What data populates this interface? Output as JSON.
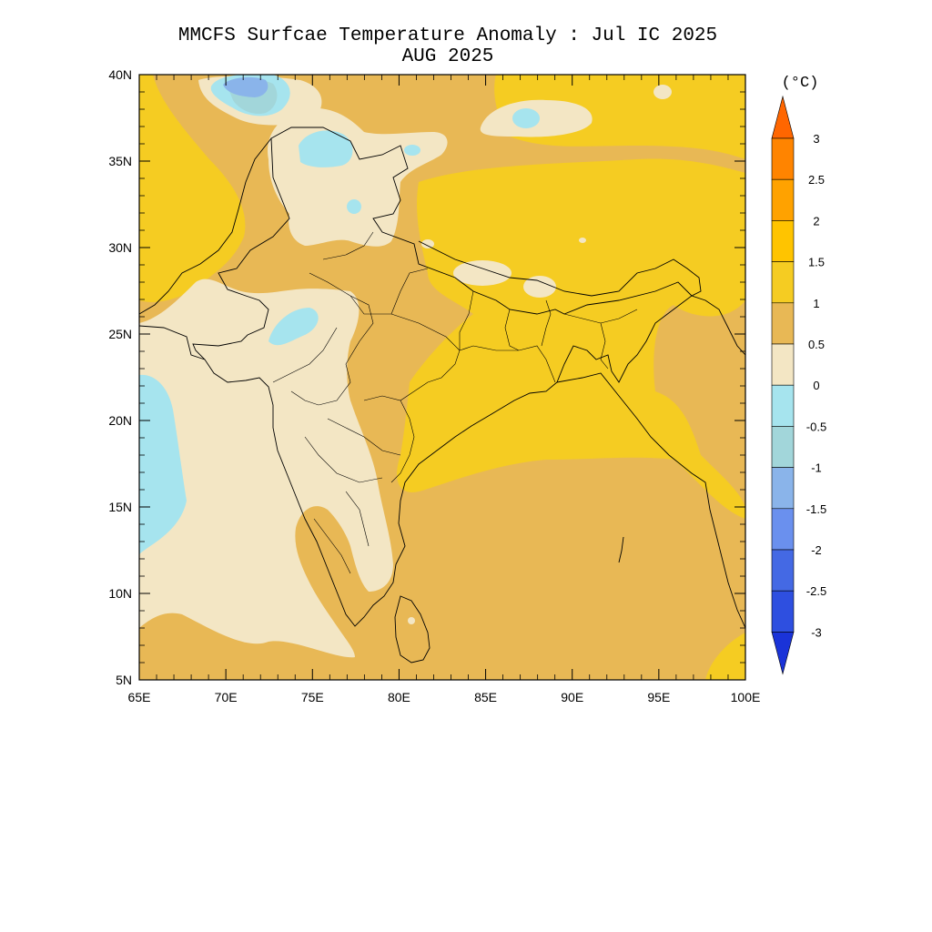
{
  "title": {
    "line1": "MMCFS Surfcae Temperature Anomaly : Jul IC 2025",
    "line2": "AUG 2025"
  },
  "map": {
    "lon_range": [
      65,
      100
    ],
    "lat_range": [
      5,
      40
    ],
    "x_ticks": [
      {
        "value": 65,
        "label": "65E"
      },
      {
        "value": 70,
        "label": "70E"
      },
      {
        "value": 75,
        "label": "75E"
      },
      {
        "value": 80,
        "label": "80E"
      },
      {
        "value": 85,
        "label": "85E"
      },
      {
        "value": 90,
        "label": "90E"
      },
      {
        "value": 95,
        "label": "95E"
      },
      {
        "value": 100,
        "label": "100E"
      }
    ],
    "y_ticks": [
      {
        "value": 40,
        "label": "40N"
      },
      {
        "value": 35,
        "label": "35N"
      },
      {
        "value": 30,
        "label": "30N"
      },
      {
        "value": 25,
        "label": "25N"
      },
      {
        "value": 20,
        "label": "20N"
      },
      {
        "value": 15,
        "label": "15N"
      },
      {
        "value": 10,
        "label": "10N"
      },
      {
        "value": 5,
        "label": "5N"
      }
    ]
  },
  "colorbar": {
    "unit": "(°C)",
    "levels": [
      "3",
      "2.5",
      "2",
      "1.5",
      "1",
      "0.5",
      "0",
      "-0.5",
      "-1",
      "-1.5",
      "-2",
      "-2.5",
      "-3"
    ],
    "colors": [
      "#FF6600",
      "#FF8400",
      "#FFA200",
      "#FFC400",
      "#F5CC22",
      "#E8B855",
      "#F3E6C4",
      "#A6E4EE",
      "#A2D6DA",
      "#8AB4EA",
      "#6A90EE",
      "#4469E4",
      "#2E4FE0",
      "#1A33D8"
    ]
  }
}
